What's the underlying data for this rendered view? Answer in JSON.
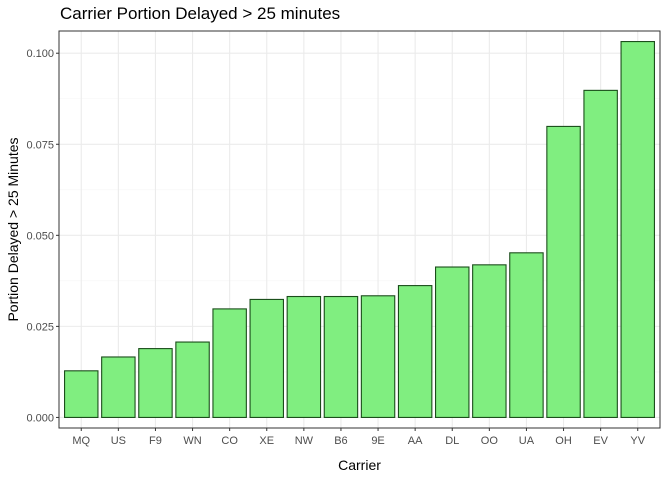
{
  "chart_data": {
    "type": "bar",
    "title": "Carrier Portion Delayed > 25 minutes",
    "xlabel": "Carrier",
    "ylabel": "Portion Delayed > 25 Minutes",
    "categories": [
      "MQ",
      "US",
      "F9",
      "WN",
      "CO",
      "XE",
      "NW",
      "B6",
      "9E",
      "AA",
      "DL",
      "OO",
      "UA",
      "OH",
      "EV",
      "YV"
    ],
    "values": [
      0.0128,
      0.0166,
      0.0189,
      0.0207,
      0.0298,
      0.0324,
      0.0332,
      0.0332,
      0.0334,
      0.0362,
      0.0413,
      0.0419,
      0.0452,
      0.0799,
      0.0898,
      0.1032
    ],
    "ylim": [
      -0.0029,
      0.1061
    ],
    "yticks": [
      0.0,
      0.025,
      0.05,
      0.075,
      0.1
    ],
    "ytick_labels": [
      "0.000",
      "0.025",
      "0.050",
      "0.075",
      "0.100"
    ],
    "grid": true,
    "colors": {
      "bar_fill": "#80ee80",
      "bar_stroke": "#1a4d1a",
      "grid_major": "#ebebeb",
      "grid_minor": "#f5f5f5",
      "panel_border": "#333333"
    }
  }
}
